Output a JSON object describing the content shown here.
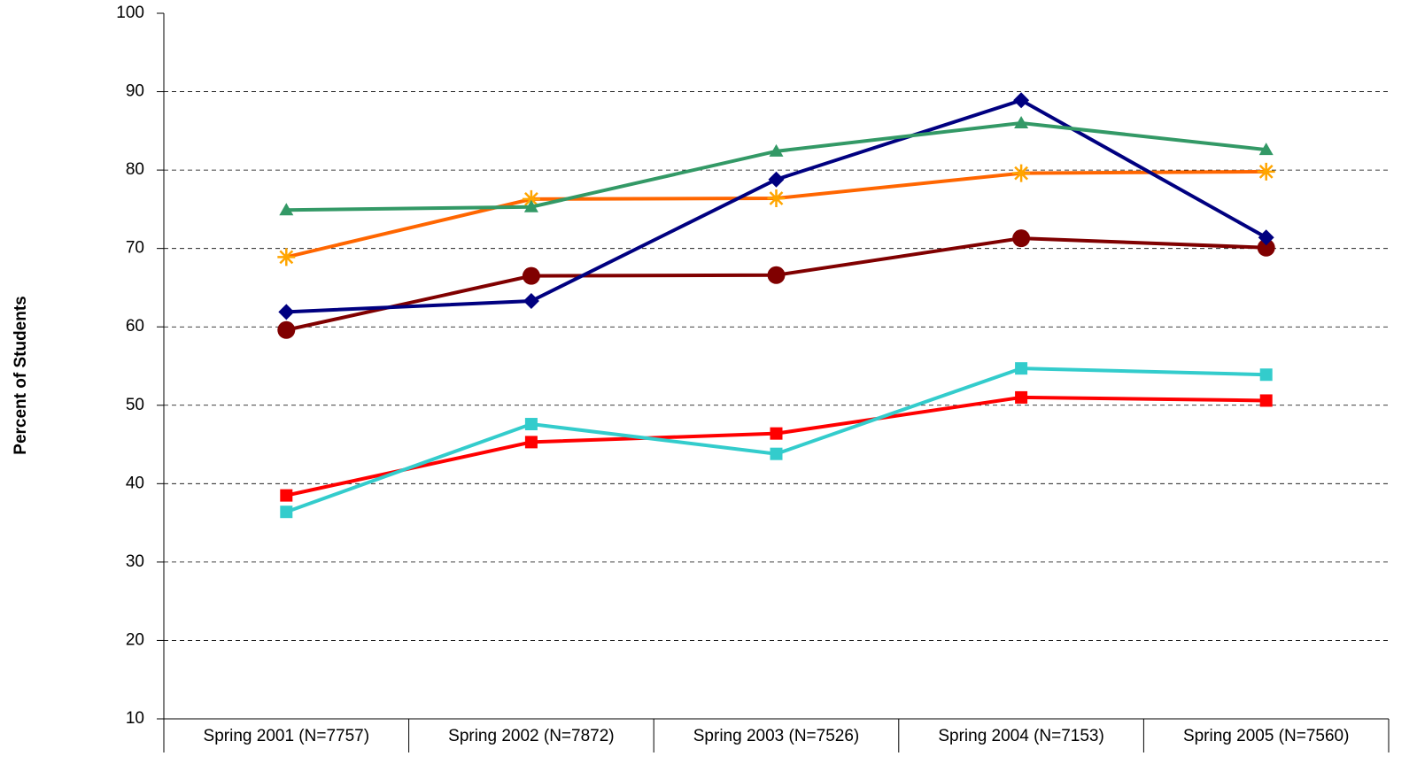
{
  "chart_data": {
    "type": "line",
    "y_label": "Percent of Students",
    "categories": [
      "Spring 2001 (N=7757)",
      "Spring 2002 (N=7872)",
      "Spring 2003 (N=7526)",
      "Spring 2004 (N=7153)",
      "Spring 2005 (N=7560)"
    ],
    "series": [
      {
        "color": "#ff0000",
        "marker": "square",
        "values": [
          38.5,
          45.3,
          46.4,
          51.0,
          50.6
        ]
      },
      {
        "color": "#33cccc",
        "marker": "square",
        "values": [
          36.4,
          47.6,
          43.8,
          54.7,
          53.9
        ]
      },
      {
        "color": "#800000",
        "marker": "circle",
        "values": [
          59.6,
          66.5,
          66.6,
          71.3,
          70.1
        ]
      },
      {
        "color": "#ff6600",
        "marker": "star",
        "values": [
          68.9,
          76.3,
          76.4,
          79.6,
          79.8
        ]
      },
      {
        "color": "#000080",
        "marker": "diamond",
        "values": [
          61.9,
          63.3,
          78.8,
          88.9,
          71.4
        ]
      },
      {
        "color": "#339966",
        "marker": "triangle",
        "values": [
          74.9,
          75.3,
          82.4,
          86.0,
          82.6
        ]
      }
    ],
    "ylim": [
      10,
      100
    ],
    "yticks": [
      10,
      20,
      30,
      40,
      50,
      60,
      70,
      80,
      90,
      100
    ],
    "grid": true
  }
}
